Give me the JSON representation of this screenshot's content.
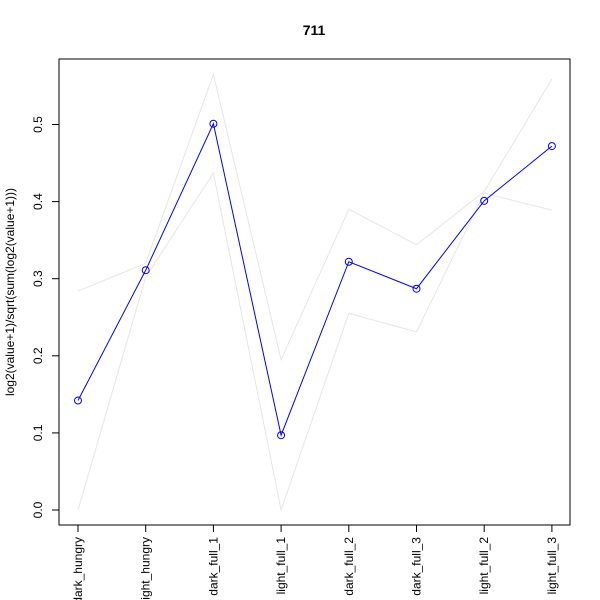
{
  "chart_data": {
    "type": "line",
    "title": "711",
    "xlabel": "",
    "ylabel": "log2(value+1)/sqrt(sum(log2(value+1)))",
    "categories": [
      "dark_hungry",
      "light_hungry",
      "dark_full_1",
      "light_full_1",
      "dark_full_2",
      "dark_full_3",
      "light_full_2",
      "light_full_3"
    ],
    "ylim": [
      -0.02,
      0.6
    ],
    "yticks": [
      0.0,
      0.1,
      0.2,
      0.3,
      0.4,
      0.5
    ],
    "ytick_labels": [
      "0.0",
      "0.1",
      "0.2",
      "0.3",
      "0.4",
      "0.5"
    ],
    "grid": false,
    "series": [
      {
        "role": "main",
        "color": "#0000ff",
        "marker": "circle",
        "values": [
          0.142,
          0.311,
          0.501,
          0.097,
          0.322,
          0.287,
          0.401,
          0.472
        ]
      },
      {
        "role": "upper",
        "color": "#e6e6e6",
        "values": [
          0.284,
          0.32,
          0.565,
          0.195,
          0.39,
          0.344,
          0.413,
          0.559
        ]
      },
      {
        "role": "lower",
        "color": "#e6e6e6",
        "values": [
          0.0,
          0.302,
          0.437,
          0.0,
          0.255,
          0.231,
          0.411,
          0.389
        ]
      }
    ]
  }
}
